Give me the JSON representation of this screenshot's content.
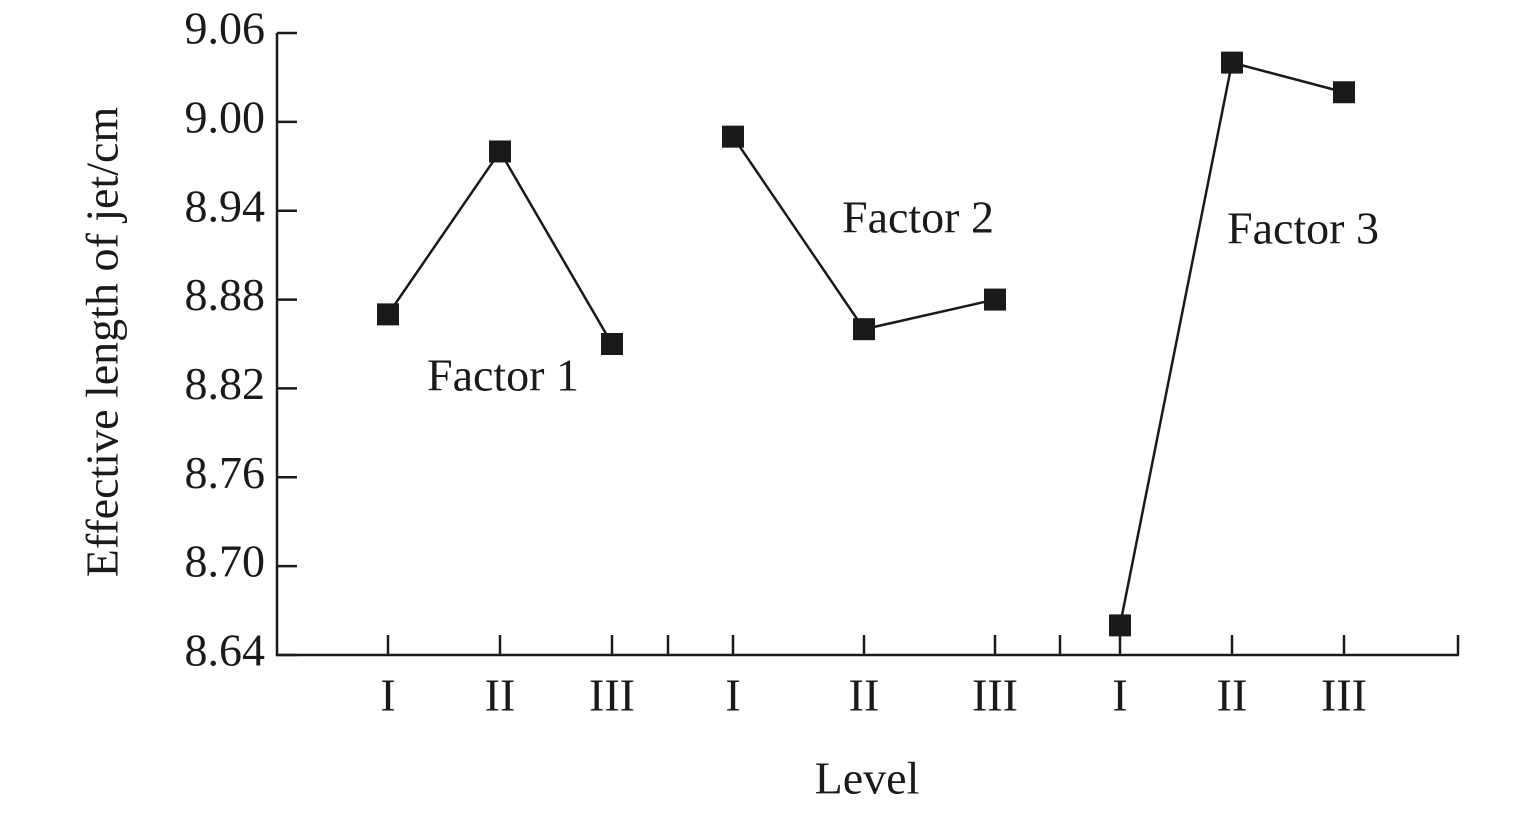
{
  "chart_data": {
    "type": "line",
    "y_label": "Effective length of jet/cm",
    "x_label": "Level",
    "ylim": [
      8.64,
      9.06
    ],
    "yticks": [
      8.64,
      {
        "value": 8.7,
        "label": "8.70"
      },
      8.76,
      8.82,
      8.88,
      8.94,
      {
        "value": 9.0,
        "label": "9.00"
      },
      9.06
    ],
    "series": [
      {
        "name": "Factor 1",
        "color": "#1a1a1a",
        "categories": [
          "I",
          "II",
          "III"
        ],
        "values": [
          8.87,
          8.98,
          8.85
        ]
      },
      {
        "name": "Factor 2",
        "color": "#1a1a1a",
        "categories": [
          "I",
          "II",
          "III"
        ],
        "values": [
          8.99,
          8.86,
          8.88
        ]
      },
      {
        "name": "Factor 3",
        "color": "#1a1a1a",
        "categories": [
          "I",
          "II",
          "III"
        ],
        "values": [
          8.66,
          9.04,
          9.02
        ]
      }
    ]
  }
}
